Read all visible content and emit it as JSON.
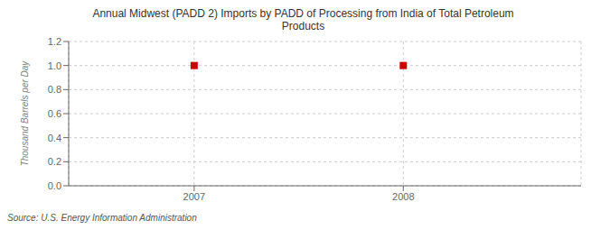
{
  "chart_data": {
    "type": "scatter",
    "title": "Annual Midwest (PADD 2) Imports by PADD of Processing from India of Total Petroleum\nProducts",
    "ylabel": "Thousand Barrels per Day",
    "source": "Source: U.S. Energy Information Administration",
    "x": [
      2007,
      2008
    ],
    "values": [
      1.0,
      1.0
    ],
    "xlim": [
      2006.4,
      2008.85
    ],
    "ylim": [
      0,
      1.2
    ],
    "xticks": [
      2007,
      2008
    ],
    "yticks": [
      {
        "value": 0,
        "label": "0.0"
      },
      0.2,
      0.4,
      0.6,
      0.8,
      {
        "value": 1,
        "label": "1.0"
      },
      1.2
    ],
    "color": "#cc0000",
    "marker": "square",
    "grid": true
  }
}
